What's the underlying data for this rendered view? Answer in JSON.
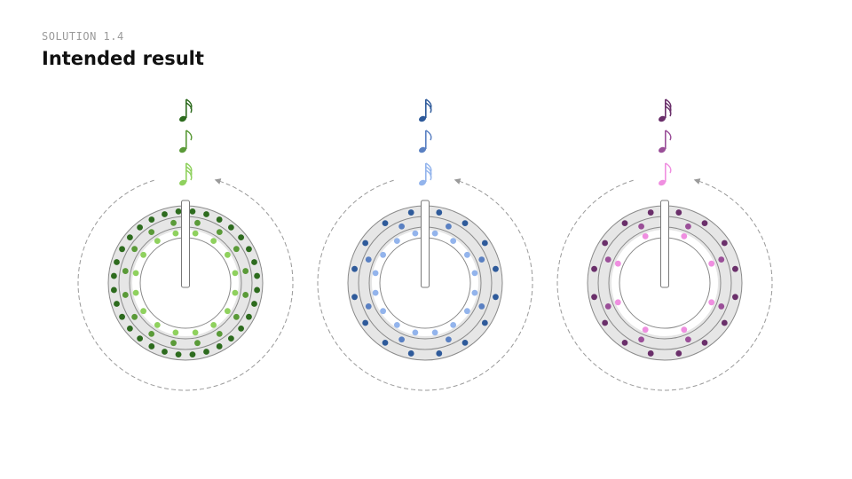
{
  "header": {
    "eyebrow": "SOLUTION 1.4",
    "title": "Intended result"
  },
  "diagrams": [
    {
      "name": "green",
      "colors": {
        "outer": "#2d6b1e",
        "middle": "#5a9a38",
        "inner": "#8fd15e"
      },
      "rings": [
        {
          "ring": "outer",
          "note": "sixteenth-note",
          "dots": 32
        },
        {
          "ring": "middle",
          "note": "eighth-note",
          "dots": 16
        },
        {
          "ring": "inner",
          "note": "thirty-second-note",
          "dots": 16
        }
      ]
    },
    {
      "name": "blue",
      "colors": {
        "outer": "#2e5a9a",
        "middle": "#5a80c2",
        "inner": "#93b4ec"
      },
      "rings": [
        {
          "ring": "outer",
          "note": "sixteenth-note",
          "dots": 16
        },
        {
          "ring": "middle",
          "note": "eighth-note",
          "dots": 8
        },
        {
          "ring": "inner",
          "note": "thirty-second-note",
          "dots": 16
        }
      ]
    },
    {
      "name": "purple",
      "colors": {
        "outer": "#6a2f6a",
        "middle": "#9a4f98",
        "inner": "#ef8fe0"
      },
      "rings": [
        {
          "ring": "outer",
          "note": "thirty-second-note",
          "dots": 16
        },
        {
          "ring": "middle",
          "note": "eighth-note",
          "dots": 8
        },
        {
          "ring": "inner",
          "note": "eighth-note",
          "dots": 8
        }
      ]
    }
  ]
}
